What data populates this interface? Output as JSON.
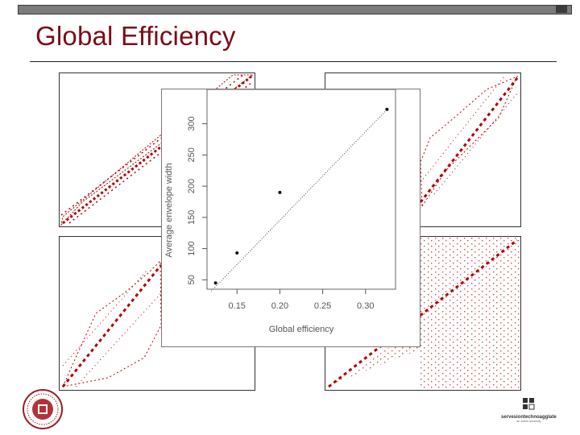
{
  "slide": {
    "title": "Global Efficiency"
  },
  "colors": {
    "accent": "#b00000",
    "title": "#7a0d17"
  },
  "logos": {
    "right_brand": "servesiontechnoagglate",
    "right_sub": "an online university"
  },
  "chart_data": {
    "type": "scatter",
    "title": "",
    "xlabel": "Global efficiency",
    "ylabel": "Average envelope width",
    "xlim": [
      0.115,
      0.335
    ],
    "ylim": [
      35,
      355
    ],
    "x_ticks": [
      "0.15",
      "0.20",
      "0.25",
      "0.30"
    ],
    "x_tick_values": [
      0.15,
      0.2,
      0.25,
      0.3
    ],
    "y_ticks": [
      "50",
      "100",
      "150",
      "200",
      "250",
      "300"
    ],
    "y_tick_values": [
      50,
      100,
      150,
      200,
      250,
      300
    ],
    "grid": false,
    "legend": "none",
    "points": [
      {
        "x": 0.125,
        "y": 45
      },
      {
        "x": 0.15,
        "y": 93
      },
      {
        "x": 0.2,
        "y": 190
      },
      {
        "x": 0.325,
        "y": 323
      }
    ],
    "fit_line": {
      "x0": 0.12,
      "y0": 32,
      "x1": 0.328,
      "y1": 327
    }
  }
}
